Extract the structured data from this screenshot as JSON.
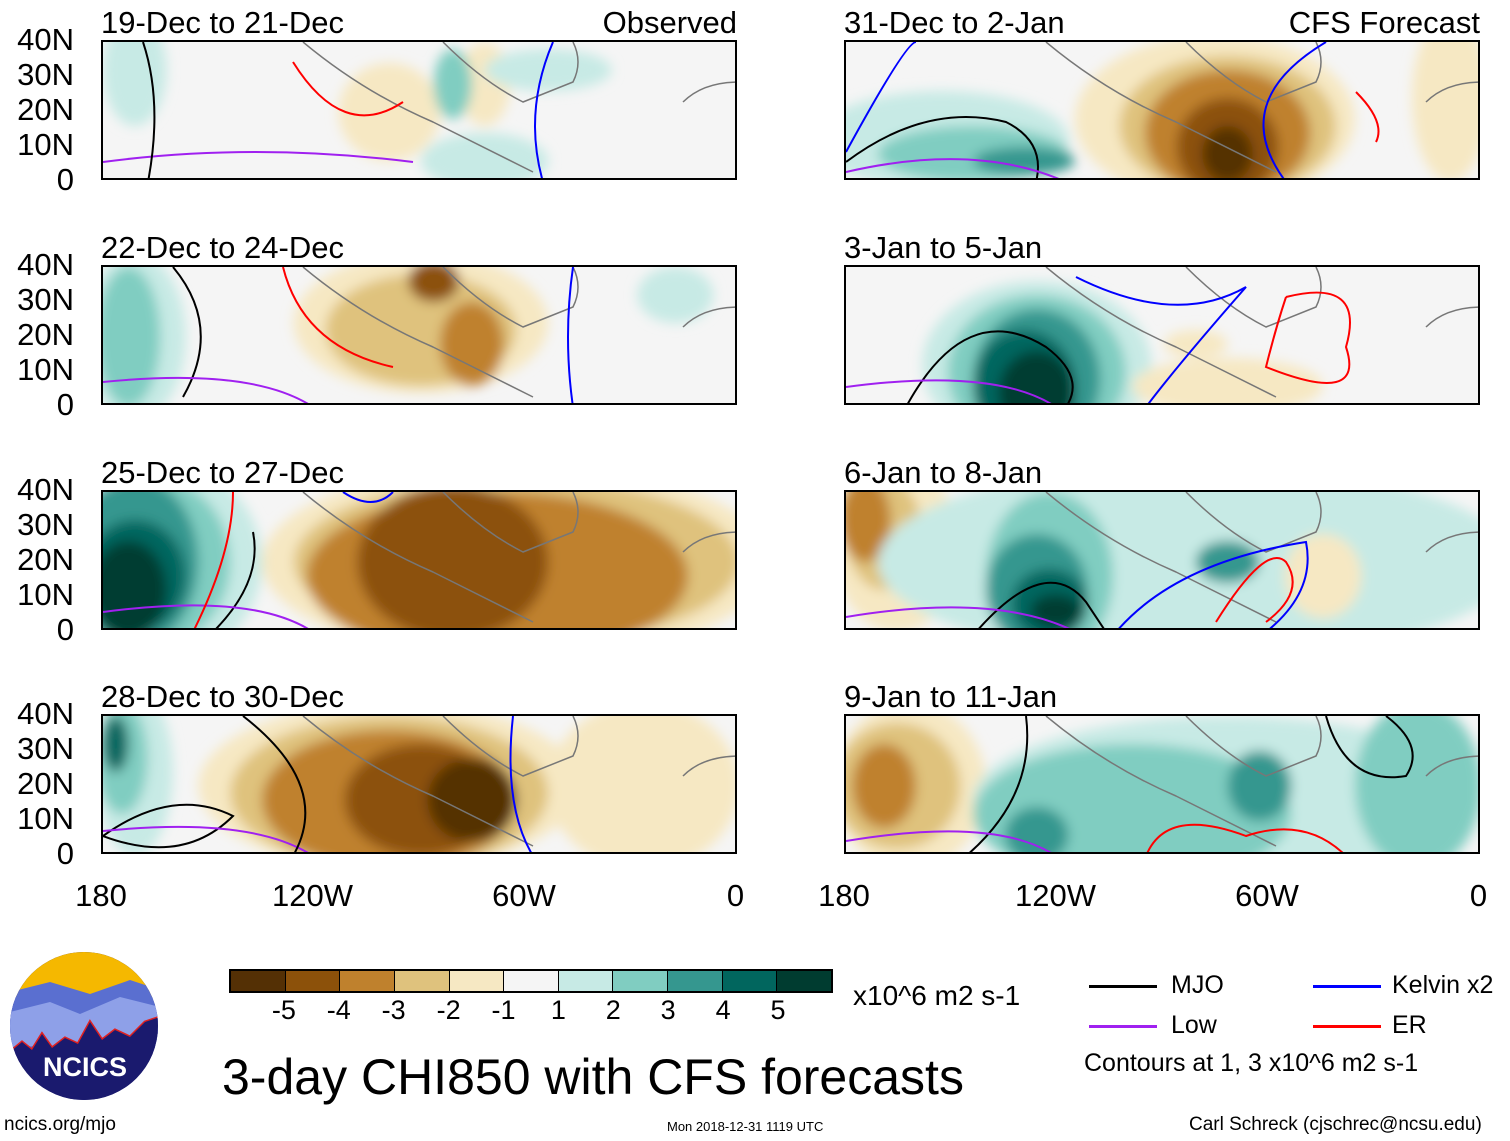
{
  "panels": [
    {
      "title": "19-Dec to 21-Dec",
      "label": "Observed"
    },
    {
      "title": "31-Dec to 2-Jan",
      "label": "CFS Forecast"
    },
    {
      "title": "22-Dec to 24-Dec"
    },
    {
      "title": "3-Jan to 5-Jan"
    },
    {
      "title": "25-Dec to 27-Dec"
    },
    {
      "title": "6-Jan to 8-Jan"
    },
    {
      "title": "28-Dec to 30-Dec"
    },
    {
      "title": "9-Jan to 11-Jan"
    }
  ],
  "y_ticks": [
    "40N",
    "30N",
    "20N",
    "10N",
    "0"
  ],
  "x_ticks": [
    "180",
    "120W",
    "60W",
    "0"
  ],
  "colorbar": {
    "labels": [
      "-5",
      "-4",
      "-3",
      "-2",
      "-1",
      "1",
      "2",
      "3",
      "4",
      "5"
    ],
    "colors": [
      "#543005",
      "#8c510a",
      "#bf812d",
      "#dfc27d",
      "#f6e8c3",
      "#f5f5f5",
      "#c7eae5",
      "#80cdc1",
      "#35978f",
      "#01665e",
      "#003c30"
    ],
    "units": "x10^6 m2 s-1"
  },
  "legend": {
    "items": [
      {
        "label": "MJO",
        "color": "#000000"
      },
      {
        "label": "Kelvin x2",
        "color": "#0000ff"
      },
      {
        "label": "Low",
        "color": "#a020f0"
      },
      {
        "label": "ER",
        "color": "#ff0000"
      }
    ],
    "note": "Contours at 1, 3 x10^6 m2 s-1"
  },
  "title": "3-day CHI850 with CFS forecasts",
  "logo_text": "NCICS",
  "footer": {
    "left": "ncics.org/mjo",
    "center": "Mon 2018-12-31 1119 UTC",
    "right": "Carl Schreck (cjschrec@ncsu.edu)"
  }
}
